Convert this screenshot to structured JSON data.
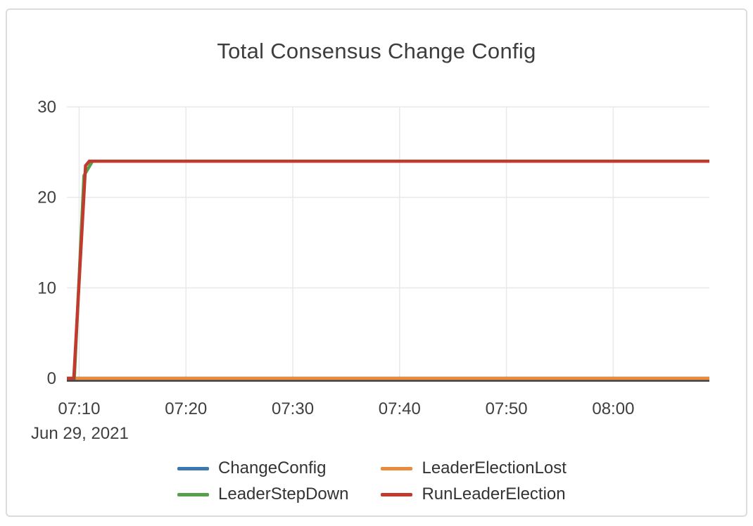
{
  "chart_data": {
    "type": "line",
    "title": "Total Consensus Change Config",
    "x_axis": {
      "date_label": "Jun 29, 2021",
      "tick_labels": [
        "07:10",
        "07:20",
        "07:30",
        "07:40",
        "07:50",
        "08:00"
      ],
      "tick_minutes": [
        10,
        20,
        30,
        40,
        50,
        60
      ],
      "range_minutes": [
        8.85,
        69
      ]
    },
    "y_axis": {
      "tick_values": [
        0,
        10,
        20,
        30
      ],
      "range": [
        0,
        30
      ]
    },
    "grid": true,
    "legend_position": "bottom",
    "series": [
      {
        "name": "ChangeConfig",
        "color": "#3b77b0",
        "points": [
          [
            8.85,
            0
          ],
          [
            69,
            0
          ]
        ]
      },
      {
        "name": "LeaderElectionLost",
        "color": "#e98a3c",
        "points": [
          [
            8.85,
            0
          ],
          [
            69,
            0
          ]
        ]
      },
      {
        "name": "LeaderStepDown",
        "color": "#56a04b",
        "points": [
          [
            8.85,
            0
          ],
          [
            9.55,
            0
          ],
          [
            10.45,
            22.4
          ],
          [
            11.25,
            24
          ],
          [
            69,
            24
          ]
        ]
      },
      {
        "name": "RunLeaderElection",
        "color": "#c23a2e",
        "points": [
          [
            8.85,
            0
          ],
          [
            9.5,
            0
          ],
          [
            10.6,
            23.5
          ],
          [
            10.95,
            24
          ],
          [
            69,
            24
          ]
        ]
      }
    ]
  },
  "colors": {
    "card_border": "#dcdcdc",
    "title_text": "#3d3d3d",
    "tick_text": "#3f3f3f",
    "legend_text": "#333333",
    "gridline": "#e9e9e9",
    "axis_line": "#393939",
    "background": "#ffffff"
  }
}
